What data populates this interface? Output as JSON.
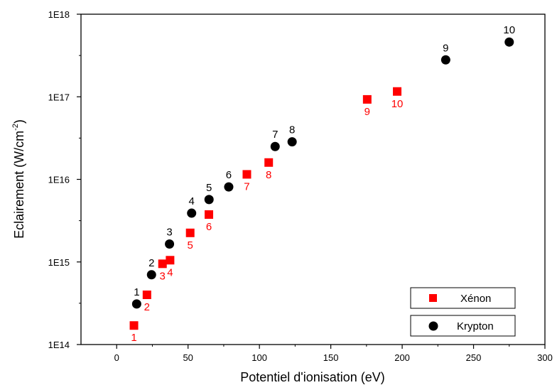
{
  "chart_data": {
    "type": "scatter",
    "xlabel": "Potentiel d'ionisation (eV)",
    "ylabel": "Eclairement (W/cm",
    "ylabel_unit_exponent": "-2",
    "ylabel_suffix": ")",
    "xlim": [
      -25,
      300
    ],
    "ylim": [
      100000000000000.0,
      1e+18
    ],
    "yscale": "log",
    "xticks": [
      0,
      50,
      100,
      150,
      200,
      250,
      300
    ],
    "xtick_labels": [
      "0",
      "50",
      "100",
      "150",
      "200",
      "250",
      "300"
    ],
    "yticks": [
      100000000000000.0,
      1000000000000000.0,
      1e+16,
      1e+17,
      1e+18
    ],
    "ytick_labels": [
      "1E14",
      "1E15",
      "1E16",
      "1E17",
      "1E18"
    ],
    "grid": false,
    "legend_position": "bottom-right",
    "series": [
      {
        "name": "Xénon",
        "marker": "square",
        "color": "#ff0000",
        "label_color": "#ff0000",
        "label_position": "below",
        "points": [
          {
            "x": 12.1,
            "y": 170000000000000.0,
            "label": "1"
          },
          {
            "x": 21.2,
            "y": 400000000000000.0,
            "label": "2"
          },
          {
            "x": 32.1,
            "y": 950000000000000.0,
            "label": "3"
          },
          {
            "x": 37.4,
            "y": 1050000000000000.0,
            "label": "4"
          },
          {
            "x": 51.5,
            "y": 2250000000000000.0,
            "label": "5"
          },
          {
            "x": 64.6,
            "y": 3750000000000000.0,
            "label": "6"
          },
          {
            "x": 91.2,
            "y": 1.15e+16,
            "label": "7"
          },
          {
            "x": 106.5,
            "y": 1.6e+16,
            "label": "8"
          },
          {
            "x": 175.5,
            "y": 9.3e+16,
            "label": "9"
          },
          {
            "x": 196.5,
            "y": 1.16e+17,
            "label": "10"
          }
        ]
      },
      {
        "name": "Krypton",
        "marker": "circle",
        "color": "#000000",
        "label_color": "#000000",
        "label_position": "above",
        "points": [
          {
            "x": 14.0,
            "y": 310000000000000.0,
            "label": "1"
          },
          {
            "x": 24.4,
            "y": 700000000000000.0,
            "label": "2"
          },
          {
            "x": 37.0,
            "y": 1650000000000000.0,
            "label": "3"
          },
          {
            "x": 52.5,
            "y": 3900000000000000.0,
            "label": "4"
          },
          {
            "x": 64.7,
            "y": 5700000000000000.0,
            "label": "5"
          },
          {
            "x": 78.5,
            "y": 8100000000000000.0,
            "label": "6"
          },
          {
            "x": 111.0,
            "y": 2.5e+16,
            "label": "7"
          },
          {
            "x": 122.9,
            "y": 2.85e+16,
            "label": "8"
          },
          {
            "x": 230.5,
            "y": 2.8e+17,
            "label": "9"
          },
          {
            "x": 275.0,
            "y": 4.6e+17,
            "label": "10"
          }
        ]
      }
    ]
  }
}
